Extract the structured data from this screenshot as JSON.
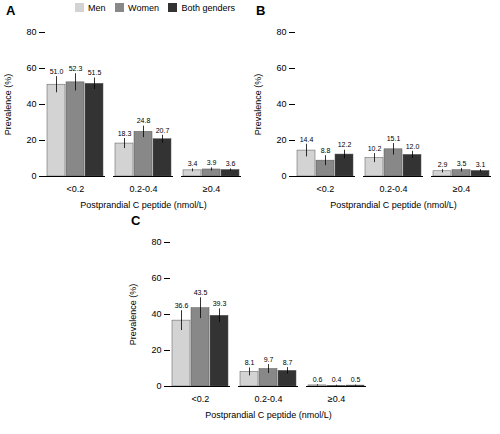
{
  "chart_data": [
    {
      "type": "bar",
      "title": "A",
      "categories": [
        "<0.2",
        "0.2-0.4",
        "≥0.4"
      ],
      "xlabel": "Postprandial C peptide (nmol/L)",
      "ylabel": "Prevalence (%)",
      "ylim": [
        0,
        80
      ],
      "yticks": [
        0,
        20,
        40,
        60,
        80
      ],
      "grid": false,
      "data_labels": true,
      "legend": "upper right",
      "series": [
        {
          "name": "Men",
          "color": "#d3d3d3",
          "values": [
            51.0,
            18.3,
            3.4
          ],
          "value_labels": [
            "51.0",
            "18.3",
            "3.4"
          ],
          "errors": [
            4.5,
            2.8,
            0.8
          ]
        },
        {
          "name": "Women",
          "color": "#888888",
          "values": [
            52.3,
            24.8,
            3.9
          ],
          "value_labels": [
            "52.3",
            "24.8",
            "3.9"
          ],
          "errors": [
            4.8,
            3.2,
            0.9
          ]
        },
        {
          "name": "Both genders",
          "color": "#333333",
          "values": [
            51.5,
            20.7,
            3.6
          ],
          "value_labels": [
            "51.5",
            "20.7",
            "3.6"
          ],
          "errors": [
            3.2,
            2.2,
            0.6
          ]
        }
      ]
    },
    {
      "type": "bar",
      "title": "B",
      "categories": [
        "<0.2",
        "0.2-0.4",
        "≥0.4"
      ],
      "xlabel": "Postprandial C peptide (nmol/L)",
      "ylabel": "Prevalence (%)",
      "ylim": [
        0,
        80
      ],
      "yticks": [
        0,
        20,
        40,
        60,
        80
      ],
      "grid": false,
      "data_labels": true,
      "series": [
        {
          "name": "Men",
          "color": "#d3d3d3",
          "values": [
            14.4,
            10.2,
            2.9
          ],
          "value_labels": [
            "14.4",
            "10.2",
            "2.9"
          ],
          "errors": [
            3.5,
            2.5,
            0.9
          ]
        },
        {
          "name": "Women",
          "color": "#888888",
          "values": [
            8.8,
            15.1,
            3.5
          ],
          "value_labels": [
            "8.8",
            "15.1",
            "3.5"
          ],
          "errors": [
            2.8,
            3.2,
            1.0
          ]
        },
        {
          "name": "Both genders",
          "color": "#333333",
          "values": [
            12.2,
            12.0,
            3.1
          ],
          "value_labels": [
            "12.2",
            "12.0",
            "3.1"
          ],
          "errors": [
            2.4,
            2.0,
            0.7
          ]
        }
      ]
    },
    {
      "type": "bar",
      "title": "C",
      "categories": [
        "<0.2",
        "0.2-0.4",
        "≥0.4"
      ],
      "xlabel": "Postprandial C peptide (nmol/L)",
      "ylabel": "Prevalence (%)",
      "ylim": [
        0,
        80
      ],
      "yticks": [
        0,
        20,
        40,
        60,
        80
      ],
      "grid": false,
      "data_labels": true,
      "series": [
        {
          "name": "Men",
          "color": "#d3d3d3",
          "values": [
            36.6,
            8.1,
            0.6
          ],
          "value_labels": [
            "36.6",
            "8.1",
            "0.6"
          ],
          "errors": [
            5.5,
            2.2,
            0.4
          ]
        },
        {
          "name": "Women",
          "color": "#888888",
          "values": [
            43.5,
            9.7,
            0.4
          ],
          "value_labels": [
            "43.5",
            "9.7",
            "0.4"
          ],
          "errors": [
            5.8,
            2.5,
            0.3
          ]
        },
        {
          "name": "Both genders",
          "color": "#333333",
          "values": [
            39.3,
            8.7,
            0.5
          ],
          "value_labels": [
            "39.3",
            "8.7",
            "0.5"
          ],
          "errors": [
            3.8,
            1.8,
            0.3
          ]
        }
      ]
    }
  ]
}
